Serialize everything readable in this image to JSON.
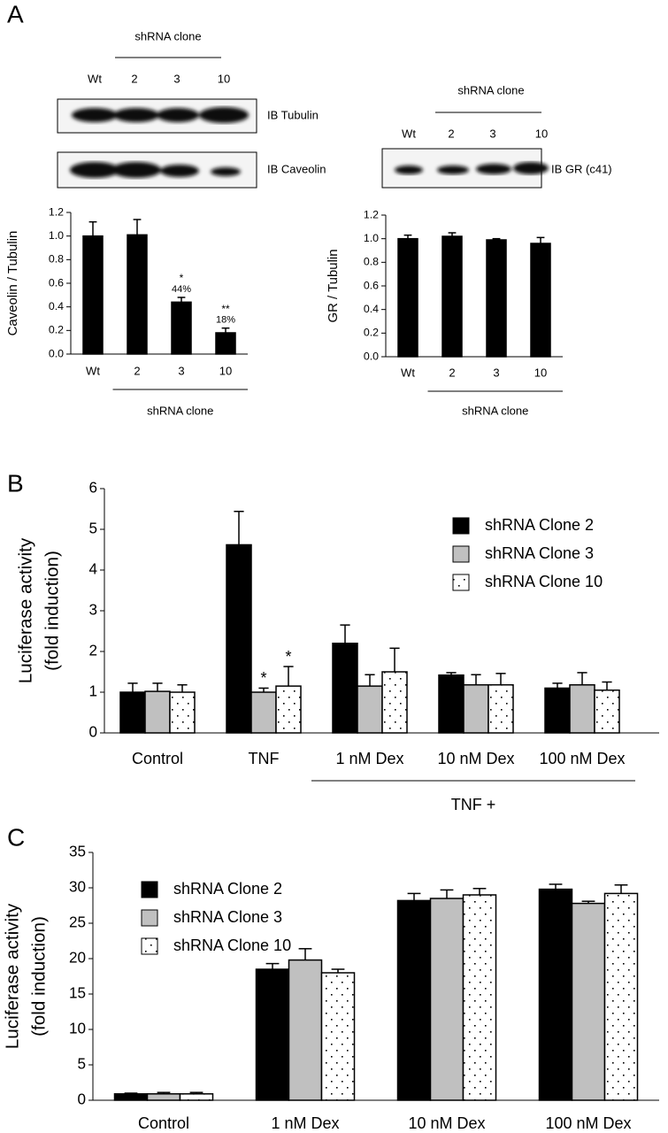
{
  "figure": {
    "panel_labels": [
      "A",
      "B",
      "C"
    ],
    "blot_left": {
      "group_label": "shRNA clone",
      "lanes": [
        "Wt",
        "2",
        "3",
        "10"
      ],
      "rows": [
        "IB Tubulin",
        "IB Caveolin"
      ]
    },
    "blot_right": {
      "group_label": "shRNA clone",
      "lanes": [
        "Wt",
        "2",
        "3",
        "10"
      ],
      "rows": [
        "IB GR (c41)"
      ]
    }
  },
  "chart_data": [
    {
      "type": "bar",
      "y_label": [
        "Caveolin / Tubulin"
      ],
      "group_label": "shRNA clone",
      "categories": [
        "Wt",
        "2",
        "3",
        "10"
      ],
      "values": [
        1.0,
        1.01,
        0.44,
        0.18
      ],
      "errors": [
        0.12,
        0.13,
        0.04,
        0.04
      ],
      "color": "#000000",
      "stars": [
        null,
        null,
        "*",
        "**"
      ],
      "percent_labels": [
        null,
        null,
        "44%",
        "18%"
      ],
      "ylim": [
        0,
        1.2
      ],
      "yticks": [
        {
          "value": 0,
          "label": "0.0"
        },
        0.2,
        0.4,
        0.6,
        0.8,
        {
          "value": 1,
          "label": "1.0"
        },
        1.2
      ]
    },
    {
      "type": "bar",
      "y_label": [
        "GR / Tubulin"
      ],
      "group_label": "shRNA clone",
      "categories": [
        "Wt",
        "2",
        "3",
        "10"
      ],
      "values": [
        1.0,
        1.02,
        0.99,
        0.96
      ],
      "errors": [
        0.03,
        0.03,
        0.01,
        0.05
      ],
      "color": "#000000",
      "ylim": [
        0,
        1.2
      ],
      "yticks": [
        {
          "value": 0,
          "label": "0.0"
        },
        0.2,
        0.4,
        0.6,
        0.8,
        {
          "value": 1,
          "label": "1.0"
        },
        1.2
      ]
    },
    {
      "type": "grouped_bar",
      "y_label": [
        "Luciferase activity",
        "(fold induction)"
      ],
      "group_label": "TNF +",
      "categories": [
        "Control",
        "TNF",
        "1 nM Dex",
        "10 nM Dex",
        "100 nM Dex"
      ],
      "series": [
        {
          "name": "shRNA Clone 2",
          "color": "#000000",
          "values": [
            1.0,
            4.62,
            2.2,
            1.42,
            1.1
          ],
          "errors": [
            0.22,
            0.82,
            0.45,
            0.06,
            0.12
          ]
        },
        {
          "name": "shRNA Clone 3",
          "color": "#c0c0c0",
          "values": [
            1.02,
            1.0,
            1.15,
            1.18,
            1.18
          ],
          "errors": [
            0.2,
            0.1,
            0.28,
            0.25,
            0.3
          ],
          "annotations": [
            null,
            "*",
            null,
            null,
            null
          ]
        },
        {
          "name": "shRNA Clone 10",
          "color": "#ffffff",
          "pattern": "dots",
          "values": [
            1.0,
            1.15,
            1.5,
            1.18,
            1.05
          ],
          "errors": [
            0.18,
            0.48,
            0.58,
            0.28,
            0.2
          ],
          "annotations": [
            null,
            "*",
            null,
            null,
            null
          ]
        }
      ],
      "legend": "upper right",
      "ylim": [
        0,
        6
      ],
      "yticks": [
        0,
        1,
        2,
        3,
        4,
        5,
        6
      ]
    },
    {
      "type": "grouped_bar",
      "y_label": [
        "Luciferase activity",
        "(fold induction)"
      ],
      "categories": [
        "Control",
        "1 nM Dex",
        "10 nM Dex",
        "100 nM Dex"
      ],
      "series": [
        {
          "name": "shRNA Clone 2",
          "color": "#000000",
          "values": [
            0.9,
            18.5,
            28.2,
            29.8
          ],
          "errors": [
            0.1,
            0.8,
            1.0,
            0.7
          ]
        },
        {
          "name": "shRNA Clone 3",
          "color": "#c0c0c0",
          "values": [
            0.9,
            19.8,
            28.5,
            27.8
          ],
          "errors": [
            0.2,
            1.6,
            1.2,
            0.3
          ]
        },
        {
          "name": "shRNA Clone 10",
          "color": "#ffffff",
          "pattern": "dots",
          "values": [
            0.9,
            18.0,
            29.0,
            29.2
          ],
          "errors": [
            0.2,
            0.5,
            0.9,
            1.2
          ]
        }
      ],
      "legend": "upper left",
      "ylim": [
        0,
        35
      ],
      "yticks": [
        0,
        5,
        10,
        15,
        20,
        25,
        30,
        35
      ]
    }
  ]
}
